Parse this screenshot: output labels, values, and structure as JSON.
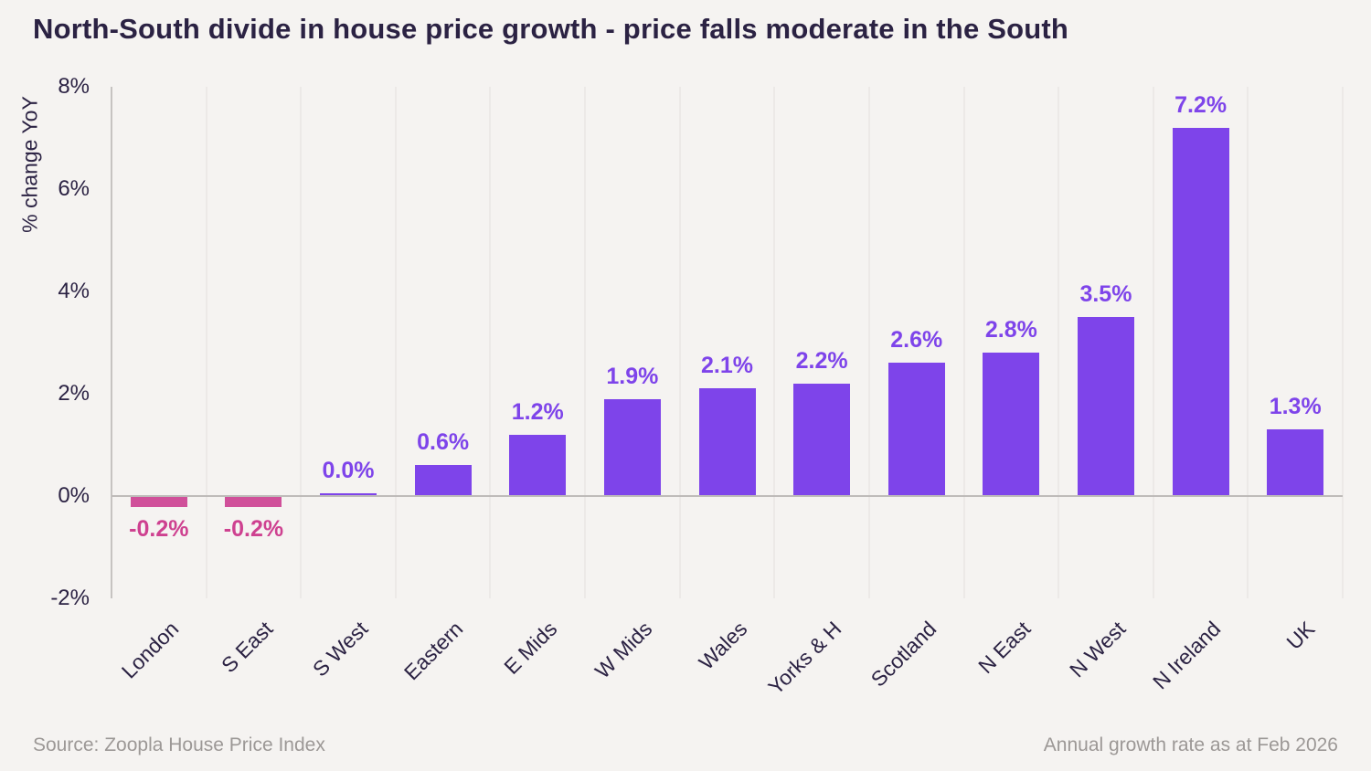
{
  "footer": {
    "source": "Source: Zoopla House Price Index",
    "note": "Annual growth rate as at Feb 2026"
  },
  "colors": {
    "positive": "#7E44EA",
    "negative_bar": "#D0509A",
    "negative_label": "#CE4190",
    "background": "#F5F3F1",
    "title_text": "#2B2243",
    "axis_text": "#2B2243",
    "zero_line": "#BEBBB9",
    "gridline": "#ECE9E7",
    "footer_text": "#9C9896"
  },
  "chart_data": {
    "type": "bar",
    "title": "North-South divide in house price growth - price falls moderate in the South",
    "xlabel": "",
    "ylabel": "% change YoY",
    "categories": [
      "London",
      "S East",
      "S West",
      "Eastern",
      "E Mids",
      "W Mids",
      "Wales",
      "Yorks & H",
      "Scotland",
      "N East",
      "N West",
      "N Ireland",
      "UK"
    ],
    "values": [
      -0.2,
      -0.2,
      0.0,
      0.6,
      1.2,
      1.9,
      2.1,
      2.2,
      2.6,
      2.8,
      3.5,
      7.2,
      1.3
    ],
    "labels": [
      "-0.2%",
      "-0.2%",
      "0.0%",
      "0.6%",
      "1.2%",
      "1.9%",
      "2.1%",
      "2.2%",
      "2.6%",
      "2.8%",
      "3.5%",
      "7.2%",
      "1.3%"
    ],
    "ylim": [
      -2,
      8
    ],
    "yticks": [
      8,
      6,
      4,
      2,
      0,
      -2
    ],
    "ytick_labels": [
      "8%",
      "6%",
      "4%",
      "2%",
      "0%",
      "-2%"
    ],
    "grid": "vertical category separators on, horizontal off",
    "legend": "none",
    "bar_color_rule": "negative values pink, zero and positive values purple",
    "x_tick_rotation_deg": 45
  }
}
